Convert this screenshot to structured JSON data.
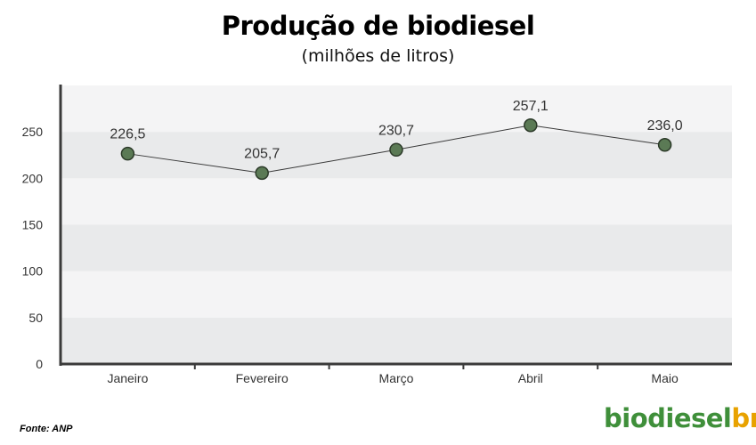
{
  "header": {
    "title": "Produção de biodiesel",
    "subtitle": "(milhões de litros)"
  },
  "footer": {
    "source": "Fonte: ANP",
    "logo_main": "biodiesel",
    "logo_suffix": "br"
  },
  "colors": {
    "band_light": "#f4f4f5",
    "band_dark": "#e9eaeb",
    "axis": "#3a3a3a",
    "line": "#3a3a3a",
    "marker_fill": "#5b7a55",
    "marker_stroke": "#2c3a29",
    "logo_green": "#3f8f3a",
    "logo_orange": "#e8a200"
  },
  "chart_data": {
    "type": "line",
    "title": "Produção de biodiesel",
    "subtitle": "(milhões de litros)",
    "categories": [
      "Janeiro",
      "Fevereiro",
      "Março",
      "Abril",
      "Maio"
    ],
    "series": [
      {
        "values": [
          226.5,
          205.7,
          230.7,
          257.1,
          236.0
        ],
        "labels": [
          "226,5",
          "205,7",
          "230,7",
          "257,1",
          "236,0"
        ]
      }
    ],
    "yticks": [
      0,
      50,
      100,
      150,
      200,
      250
    ],
    "ylim": [
      0,
      300
    ],
    "grid": "alternating horizontal bands",
    "legend": "none"
  }
}
